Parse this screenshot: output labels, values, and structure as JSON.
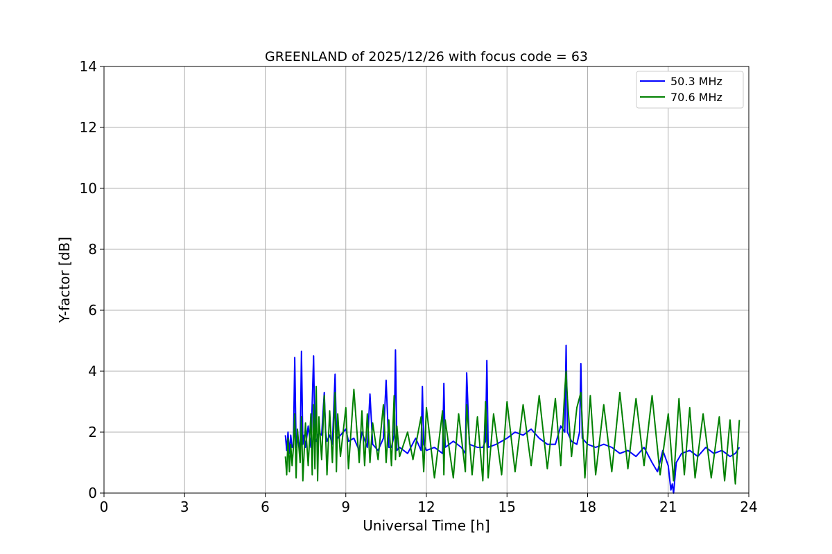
{
  "chart_data": {
    "type": "line",
    "title": "GREENLAND of 2025/12/26 with focus code = 63",
    "xlabel": "Universal Time [h]",
    "ylabel": "Y-factor [dB]",
    "xlim": [
      0,
      24
    ],
    "ylim": [
      0,
      14
    ],
    "xticks": [
      0,
      3,
      6,
      9,
      12,
      15,
      18,
      21,
      24
    ],
    "yticks": [
      0,
      2,
      4,
      6,
      8,
      10,
      12,
      14
    ],
    "grid": true,
    "legend_position": "top-right",
    "series": [
      {
        "name": "   50.3 MHz",
        "color": "#0000ff",
        "x": [
          6.75,
          6.8,
          6.85,
          6.9,
          6.95,
          7.0,
          7.05,
          7.1,
          7.15,
          7.2,
          7.3,
          7.35,
          7.4,
          7.45,
          7.5,
          7.6,
          7.7,
          7.8,
          7.85,
          7.9,
          8.0,
          8.1,
          8.2,
          8.25,
          8.3,
          8.4,
          8.5,
          8.6,
          8.65,
          8.7,
          8.8,
          9.0,
          9.1,
          9.3,
          9.5,
          9.6,
          9.8,
          9.9,
          10.0,
          10.2,
          10.4,
          10.5,
          10.6,
          10.7,
          10.8,
          10.85,
          10.9,
          11.0,
          11.3,
          11.6,
          11.8,
          11.85,
          11.9,
          12.0,
          12.3,
          12.6,
          12.65,
          12.7,
          13.0,
          13.3,
          13.45,
          13.5,
          13.6,
          13.9,
          14.1,
          14.2,
          14.25,
          14.3,
          14.6,
          15.0,
          15.3,
          15.6,
          15.9,
          16.2,
          16.5,
          16.8,
          17.0,
          17.15,
          17.2,
          17.25,
          17.4,
          17.6,
          17.7,
          17.75,
          17.8,
          18.0,
          18.3,
          18.6,
          18.9,
          19.2,
          19.5,
          19.8,
          20.1,
          20.4,
          20.6,
          20.8,
          21.0,
          21.1,
          21.15,
          21.2,
          21.3,
          21.5,
          21.8,
          22.1,
          22.4,
          22.7,
          23.0,
          23.3,
          23.5,
          23.65
        ],
        "y": [
          1.9,
          1.4,
          2.0,
          1.3,
          1.9,
          1.5,
          1.6,
          4.45,
          1.5,
          1.9,
          1.4,
          4.65,
          1.6,
          1.9,
          1.5,
          2.2,
          1.5,
          4.5,
          1.8,
          1.7,
          2.0,
          1.9,
          3.3,
          2.0,
          1.7,
          1.9,
          1.6,
          3.9,
          2.0,
          1.8,
          1.9,
          2.1,
          1.7,
          1.8,
          1.4,
          2.0,
          1.5,
          3.25,
          1.6,
          1.4,
          1.8,
          3.7,
          1.5,
          1.5,
          1.9,
          4.7,
          1.4,
          1.5,
          1.3,
          1.8,
          1.4,
          3.5,
          1.6,
          1.4,
          1.5,
          1.3,
          3.6,
          1.5,
          1.7,
          1.5,
          1.3,
          3.95,
          1.6,
          1.5,
          1.5,
          1.7,
          4.35,
          1.5,
          1.6,
          1.8,
          2.0,
          1.9,
          2.1,
          1.8,
          1.6,
          1.6,
          2.2,
          2.0,
          4.85,
          2.0,
          1.7,
          1.6,
          2.0,
          4.25,
          1.8,
          1.6,
          1.5,
          1.6,
          1.5,
          1.3,
          1.4,
          1.2,
          1.5,
          1.0,
          0.7,
          1.4,
          0.9,
          0.1,
          0.3,
          0.0,
          1.0,
          1.3,
          1.4,
          1.2,
          1.5,
          1.3,
          1.4,
          1.2,
          1.3,
          1.5
        ]
      },
      {
        "name": "   70.6 MHz",
        "color": "#008000",
        "x": [
          6.75,
          6.8,
          6.85,
          6.9,
          6.95,
          7.0,
          7.05,
          7.1,
          7.15,
          7.2,
          7.3,
          7.35,
          7.4,
          7.5,
          7.6,
          7.7,
          7.75,
          7.8,
          7.85,
          7.9,
          7.95,
          8.0,
          8.1,
          8.2,
          8.3,
          8.4,
          8.5,
          8.6,
          8.65,
          8.7,
          8.8,
          9.0,
          9.1,
          9.3,
          9.5,
          9.6,
          9.7,
          9.8,
          9.9,
          10.0,
          10.2,
          10.4,
          10.5,
          10.6,
          10.7,
          10.8,
          10.85,
          10.9,
          11.0,
          11.3,
          11.5,
          11.8,
          11.9,
          12.0,
          12.3,
          12.6,
          12.65,
          12.7,
          13.0,
          13.2,
          13.45,
          13.5,
          13.7,
          13.9,
          14.1,
          14.2,
          14.3,
          14.5,
          14.8,
          15.0,
          15.3,
          15.6,
          15.9,
          16.2,
          16.5,
          16.8,
          17.0,
          17.15,
          17.2,
          17.25,
          17.4,
          17.6,
          17.75,
          17.9,
          18.1,
          18.3,
          18.6,
          18.9,
          19.2,
          19.5,
          19.8,
          20.1,
          20.4,
          20.7,
          21.0,
          21.2,
          21.4,
          21.6,
          21.8,
          22.0,
          22.3,
          22.6,
          22.9,
          23.1,
          23.3,
          23.5,
          23.65
        ],
        "y": [
          1.2,
          0.6,
          1.8,
          0.7,
          1.6,
          0.9,
          1.5,
          2.6,
          0.5,
          2.1,
          1.0,
          2.5,
          0.4,
          2.3,
          0.9,
          2.6,
          0.6,
          2.9,
          0.8,
          3.5,
          0.4,
          2.5,
          1.1,
          3.2,
          0.6,
          2.7,
          1.0,
          3.3,
          0.7,
          2.6,
          1.2,
          2.8,
          0.8,
          3.4,
          1.0,
          2.7,
          0.9,
          2.6,
          1.0,
          2.3,
          1.1,
          2.9,
          1.0,
          2.4,
          0.9,
          3.2,
          1.1,
          2.2,
          1.2,
          2.0,
          1.1,
          2.5,
          0.7,
          2.8,
          0.5,
          2.7,
          0.6,
          2.4,
          0.5,
          2.6,
          0.7,
          2.9,
          0.6,
          2.5,
          0.4,
          3.0,
          0.5,
          2.6,
          0.6,
          3.0,
          0.7,
          2.9,
          0.9,
          3.2,
          0.8,
          3.1,
          0.9,
          3.4,
          4.0,
          3.1,
          1.2,
          2.8,
          3.3,
          0.5,
          3.2,
          0.6,
          2.9,
          0.7,
          3.3,
          0.8,
          3.1,
          0.9,
          3.2,
          0.6,
          2.6,
          0.4,
          3.1,
          0.6,
          2.8,
          0.5,
          2.6,
          0.5,
          2.5,
          0.4,
          2.4,
          0.3,
          2.4
        ]
      }
    ]
  }
}
